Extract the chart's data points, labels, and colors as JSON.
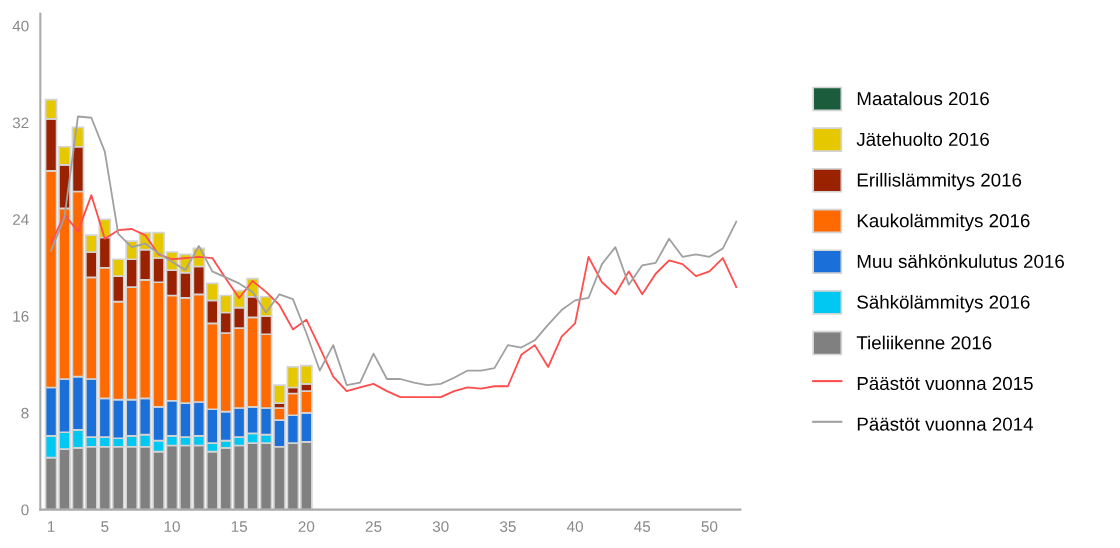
{
  "chart_data": {
    "type": "bar",
    "stacked": true,
    "legend": "right",
    "grid": false,
    "marker": "none",
    "line_style": "solid",
    "x": [
      1,
      2,
      3,
      4,
      5,
      6,
      7,
      8,
      9,
      10,
      11,
      12,
      13,
      14,
      15,
      16,
      17,
      18,
      19,
      20
    ],
    "xlim": [
      0.2,
      52.3
    ],
    "xticks": [
      1,
      5,
      10,
      15,
      20,
      25,
      30,
      35,
      40,
      45,
      50
    ],
    "ylim": [
      0,
      41
    ],
    "yticks": [
      0,
      8,
      16,
      24,
      32,
      40
    ],
    "series": [
      {
        "name": "Tieliikenne 2016",
        "color": "#808080",
        "values": [
          4.3,
          5.0,
          5.1,
          5.2,
          5.2,
          5.2,
          5.2,
          5.2,
          4.8,
          5.3,
          5.3,
          5.3,
          4.8,
          5.1,
          5.3,
          5.5,
          5.5,
          5.2,
          5.5,
          5.6
        ]
      },
      {
        "name": "Sähkölämmitys 2016",
        "color": "#00c8f2",
        "values": [
          1.8,
          1.4,
          1.5,
          0.8,
          0.8,
          0.7,
          0.9,
          1.0,
          0.9,
          0.8,
          0.7,
          0.8,
          0.7,
          0.6,
          0.7,
          0.8,
          0.7,
          null,
          null,
          null
        ]
      },
      {
        "name": "Muu sähkönkulutus 2016",
        "color": "#1a6fd8",
        "values": [
          4.0,
          4.4,
          4.4,
          4.8,
          3.2,
          3.2,
          3.0,
          3.0,
          2.8,
          2.9,
          2.8,
          2.8,
          2.8,
          2.4,
          2.4,
          2.2,
          2.2,
          2.2,
          2.3,
          2.4
        ]
      },
      {
        "name": "Kaukolämmitys 2016",
        "color": "#ff6a00",
        "values": [
          17.9,
          14.1,
          15.3,
          8.4,
          10.8,
          8.1,
          9.3,
          9.8,
          10.3,
          8.7,
          8.7,
          8.9,
          7.1,
          6.5,
          6.6,
          7.4,
          6.1,
          1.0,
          1.8,
          1.8
        ]
      },
      {
        "name": "Erillislämmitys 2016",
        "color": "#9b2200",
        "values": [
          4.3,
          3.6,
          3.7,
          2.1,
          2.5,
          2.1,
          2.3,
          2.5,
          2.0,
          2.1,
          2.1,
          2.3,
          1.9,
          1.7,
          1.7,
          1.7,
          1.5,
          0.4,
          0.5,
          0.6
        ]
      },
      {
        "name": "Jätehuolto 2016",
        "color": "#e6c800",
        "values": [
          1.6,
          1.5,
          1.6,
          1.4,
          1.5,
          1.4,
          1.5,
          1.4,
          2.1,
          1.5,
          1.5,
          1.5,
          1.4,
          1.4,
          1.4,
          1.5,
          1.6,
          1.5,
          1.7,
          1.5
        ]
      },
      {
        "name": "Maatalous 2016",
        "color": "#1a5c3c",
        "values": [
          null,
          null,
          null,
          null,
          null,
          null,
          null,
          null,
          null,
          null,
          null,
          null,
          null,
          null,
          null,
          null,
          null,
          null,
          null,
          null
        ]
      },
      {
        "name": "Päästöt vuonna 2015",
        "type": "line",
        "color": "#ff4d4d",
        "x": [
          1,
          2,
          3,
          4,
          5,
          6,
          7,
          8,
          9,
          10,
          11,
          12,
          13,
          14,
          15,
          16,
          17,
          18,
          19,
          20,
          21,
          22,
          23,
          24,
          25,
          26,
          27,
          28,
          29,
          30,
          31,
          32,
          33,
          34,
          35,
          36,
          37,
          38,
          39,
          40,
          41,
          42,
          43,
          44,
          45,
          46,
          47,
          48,
          49,
          50,
          51,
          52
        ],
        "values": [
          22.0,
          24.4,
          23.0,
          26.0,
          22.4,
          23.1,
          23.2,
          22.7,
          21.1,
          20.7,
          20.8,
          20.9,
          20.8,
          19.1,
          17.5,
          18.9,
          18.0,
          16.9,
          14.9,
          15.7,
          13.4,
          11.0,
          9.8,
          10.1,
          10.4,
          9.8,
          9.3,
          9.3,
          9.3,
          9.3,
          9.8,
          10.1,
          10.0,
          10.2,
          10.2,
          12.8,
          13.6,
          11.8,
          14.3,
          15.4,
          20.9,
          18.8,
          17.8,
          19.7,
          17.8,
          19.5,
          20.6,
          20.3,
          19.3,
          19.7,
          20.8,
          18.4
        ]
      },
      {
        "name": "Päästöt vuonna 2014",
        "type": "line",
        "color": "#a0a0a0",
        "x": [
          1,
          2,
          3,
          4,
          5,
          6,
          7,
          8,
          9,
          10,
          11,
          12,
          13,
          14,
          15,
          16,
          17,
          18,
          19,
          20,
          21,
          22,
          23,
          24,
          25,
          26,
          27,
          28,
          29,
          30,
          31,
          32,
          33,
          34,
          35,
          36,
          37,
          38,
          39,
          40,
          41,
          42,
          43,
          44,
          45,
          46,
          47,
          48,
          49,
          50,
          51,
          52
        ],
        "values": [
          21.4,
          24.2,
          32.5,
          32.4,
          29.6,
          22.8,
          21.7,
          22.0,
          21.2,
          20.5,
          19.8,
          21.8,
          19.7,
          19.2,
          18.7,
          18.0,
          16.3,
          17.8,
          17.4,
          14.6,
          11.5,
          13.6,
          10.3,
          10.5,
          12.9,
          10.8,
          10.8,
          10.5,
          10.3,
          10.4,
          10.9,
          11.5,
          11.5,
          11.7,
          13.6,
          13.4,
          14.0,
          15.3,
          16.5,
          17.3,
          17.5,
          20.3,
          21.7,
          18.6,
          20.2,
          20.4,
          22.4,
          20.9,
          21.1,
          20.9,
          21.6,
          23.8
        ]
      }
    ]
  }
}
